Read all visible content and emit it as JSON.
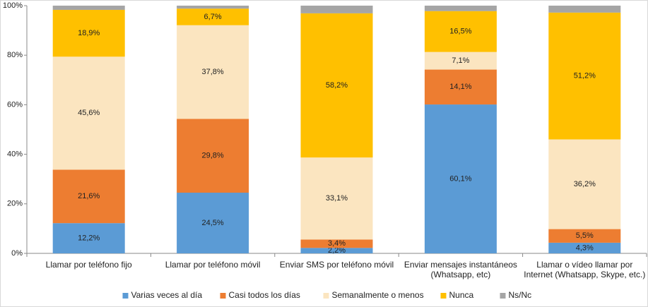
{
  "chart_data": {
    "type": "stacked_bar",
    "categories": [
      "Llamar por teléfono fijo",
      "Llamar por teléfono móvil",
      "Enviar SMS por teléfono móvil",
      "Enviar mensajes instantáneos (Whatsapp, etc)",
      "Llamar o vídeo llamar por Internet (Whatsapp, Skype, etc.)"
    ],
    "series": [
      {
        "name": "Varias veces al día",
        "color": "#5b9bd5",
        "values": [
          12.2,
          24.5,
          2.2,
          60.1,
          4.3
        ],
        "value_labels": [
          "12,2%",
          "24,5%",
          "2,2%",
          "60,1%",
          "4,3%"
        ]
      },
      {
        "name": "Casi todos los días",
        "color": "#ed7d31",
        "values": [
          21.6,
          29.8,
          3.4,
          14.1,
          5.5
        ],
        "value_labels": [
          "21,6%",
          "29,8%",
          "3,4%",
          "14,1%",
          "5,5%"
        ]
      },
      {
        "name": "Semanalmente o menos",
        "color": "#fbe5c0",
        "values": [
          45.6,
          37.8,
          33.1,
          7.1,
          36.2
        ],
        "value_labels": [
          "45,6%",
          "37,8%",
          "33,1%",
          "7,1%",
          "36,2%"
        ]
      },
      {
        "name": "Nunca",
        "color": "#ffc000",
        "values": [
          18.9,
          6.7,
          58.2,
          16.5,
          51.2
        ],
        "value_labels": [
          "18,9%",
          "6,7%",
          "58,2%",
          "16,5%",
          "51,2%"
        ]
      },
      {
        "name": "Ns/Nc",
        "color": "#a5a5a5",
        "values": [
          1.7,
          1.2,
          3.1,
          2.2,
          2.8
        ]
      }
    ],
    "ylim": [
      0,
      100
    ],
    "yticks": [
      {
        "value": 0,
        "label": "0%"
      },
      {
        "value": 20,
        "label": "20%"
      },
      {
        "value": 40,
        "label": "40%"
      },
      {
        "value": 60,
        "label": "60%"
      },
      {
        "value": 80,
        "label": "80%"
      },
      {
        "value": 100,
        "label": "100%"
      }
    ],
    "grid": false,
    "legend": "bottom"
  }
}
